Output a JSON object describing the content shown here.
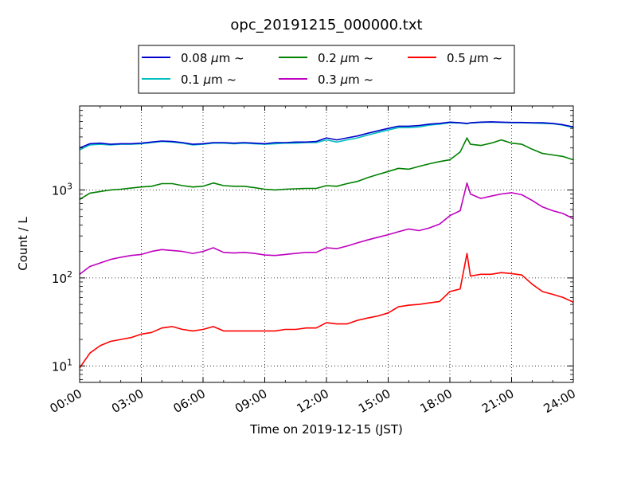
{
  "chart_data": {
    "type": "line",
    "title": "opc_20191215_000000.txt",
    "xlabel": "Time on 2019-12-15 (JST)",
    "ylabel": "Count / L",
    "y_scale": "log",
    "grid": true,
    "legend_position": "top-center",
    "xlim": [
      "00:00",
      "24:00"
    ],
    "ylim": [
      6.5,
      9000
    ],
    "x_ticks": [
      "00:00",
      "03:00",
      "06:00",
      "09:00",
      "12:00",
      "15:00",
      "18:00",
      "21:00",
      "24:00"
    ],
    "y_ticks": [
      {
        "value": 10,
        "base": "10",
        "exp": "1"
      },
      {
        "value": 100,
        "base": "10",
        "exp": "2"
      },
      {
        "value": 1000,
        "base": "10",
        "exp": "3"
      }
    ],
    "x": [
      "00:00",
      "00:30",
      "01:00",
      "01:30",
      "02:00",
      "02:30",
      "03:00",
      "03:30",
      "04:00",
      "04:30",
      "05:00",
      "05:30",
      "06:00",
      "06:30",
      "07:00",
      "07:30",
      "08:00",
      "08:30",
      "09:00",
      "09:30",
      "10:00",
      "10:30",
      "11:00",
      "11:30",
      "12:00",
      "12:30",
      "13:00",
      "13:30",
      "14:00",
      "14:30",
      "15:00",
      "15:30",
      "16:00",
      "16:30",
      "17:00",
      "17:30",
      "18:00",
      "18:30",
      "18:50",
      "19:00",
      "19:30",
      "20:00",
      "20:30",
      "21:00",
      "21:30",
      "22:00",
      "22:30",
      "23:00",
      "23:30",
      "24:00"
    ],
    "series": [
      {
        "name": "0.08",
        "unit": "μm",
        "suffix": "~",
        "color": "#0000cc",
        "values": [
          3000,
          3350,
          3400,
          3300,
          3350,
          3350,
          3400,
          3500,
          3600,
          3550,
          3450,
          3300,
          3350,
          3450,
          3450,
          3400,
          3450,
          3400,
          3350,
          3450,
          3450,
          3500,
          3500,
          3550,
          3900,
          3700,
          3900,
          4100,
          4400,
          4700,
          5000,
          5300,
          5300,
          5400,
          5600,
          5700,
          5900,
          5800,
          5700,
          5800,
          5900,
          5950,
          5900,
          5850,
          5850,
          5800,
          5800,
          5700,
          5500,
          5200
        ]
      },
      {
        "name": "0.1",
        "unit": "μm",
        "suffix": "~",
        "color": "#00bfbf",
        "values": [
          2850,
          3250,
          3300,
          3250,
          3300,
          3300,
          3350,
          3450,
          3550,
          3500,
          3400,
          3250,
          3300,
          3400,
          3400,
          3350,
          3400,
          3350,
          3300,
          3350,
          3400,
          3400,
          3450,
          3450,
          3700,
          3500,
          3700,
          3900,
          4200,
          4500,
          4800,
          5100,
          5100,
          5200,
          5450,
          5600,
          5800,
          5750,
          5650,
          5750,
          5850,
          5900,
          5850,
          5800,
          5800,
          5750,
          5700,
          5650,
          5450,
          5100
        ]
      },
      {
        "name": "0.2",
        "unit": "μm",
        "suffix": "~",
        "color": "#008000",
        "values": [
          780,
          920,
          960,
          1000,
          1020,
          1050,
          1080,
          1100,
          1180,
          1180,
          1120,
          1080,
          1100,
          1200,
          1120,
          1100,
          1100,
          1060,
          1020,
          1000,
          1020,
          1030,
          1040,
          1040,
          1120,
          1100,
          1180,
          1250,
          1380,
          1500,
          1620,
          1760,
          1720,
          1850,
          1980,
          2100,
          2200,
          2700,
          3900,
          3300,
          3200,
          3400,
          3700,
          3400,
          3300,
          2900,
          2600,
          2500,
          2400,
          2200
        ]
      },
      {
        "name": "0.3",
        "unit": "μm",
        "suffix": "~",
        "color": "#bf00bf",
        "values": [
          110,
          135,
          148,
          162,
          172,
          180,
          185,
          200,
          210,
          205,
          200,
          190,
          200,
          220,
          195,
          192,
          195,
          190,
          182,
          180,
          185,
          190,
          195,
          195,
          220,
          215,
          230,
          250,
          270,
          290,
          310,
          335,
          360,
          345,
          370,
          410,
          510,
          580,
          1200,
          900,
          800,
          850,
          900,
          930,
          880,
          760,
          640,
          580,
          540,
          470
        ]
      },
      {
        "name": "0.5",
        "unit": "μm",
        "suffix": "~",
        "color": "#ff0000",
        "values": [
          9.5,
          14,
          17,
          19,
          20,
          21,
          23,
          24,
          27,
          28,
          26,
          25,
          26,
          28,
          25,
          25,
          25,
          25,
          25,
          25,
          26,
          26,
          27,
          27,
          31,
          30,
          30,
          33,
          35,
          37,
          40,
          47,
          49,
          50,
          52,
          54,
          70,
          75,
          190,
          105,
          110,
          110,
          115,
          112,
          108,
          85,
          70,
          65,
          60,
          53
        ]
      }
    ]
  }
}
